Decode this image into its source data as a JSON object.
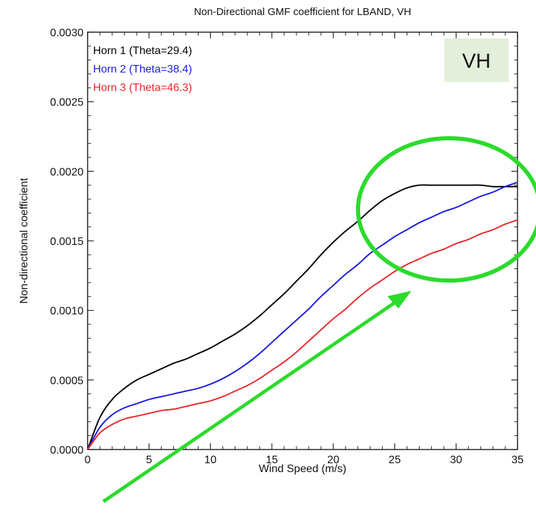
{
  "chart_data": {
    "type": "line",
    "title": "Non-Directional GMF coefficient for LBAND, VH",
    "xlabel": "Wind Speed (m/s)",
    "ylabel": "Non-directional coefficient",
    "xlim": [
      0,
      35
    ],
    "ylim": [
      0,
      0.003
    ],
    "xticks": [
      "0",
      "5",
      "10",
      "15",
      "20",
      "25",
      "30",
      "35"
    ],
    "yticks": [
      "0.0000",
      "0.0005",
      "0.0010",
      "0.0015",
      "0.0020",
      "0.0025",
      "0.0030"
    ],
    "x": [
      0,
      1,
      2,
      3,
      4,
      5,
      6,
      7,
      8,
      9,
      10,
      11,
      12,
      13,
      14,
      15,
      16,
      17,
      18,
      19,
      20,
      21,
      22,
      23,
      24,
      25,
      26,
      27,
      28,
      29,
      30,
      31,
      32,
      33,
      34,
      35
    ],
    "series": [
      {
        "name": "Horn 1 (Theta=29.4)",
        "color": "#000000",
        "values": [
          0.0,
          0.00023,
          0.00036,
          0.00044,
          0.0005,
          0.00054,
          0.00058,
          0.00062,
          0.00065,
          0.00069,
          0.00073,
          0.00078,
          0.00083,
          0.00089,
          0.00096,
          0.00104,
          0.00112,
          0.00121,
          0.0013,
          0.0014,
          0.00149,
          0.00157,
          0.00164,
          0.00172,
          0.00179,
          0.00184,
          0.00188,
          0.0019,
          0.0019,
          0.0019,
          0.0019,
          0.0019,
          0.0019,
          0.00189,
          0.00189,
          0.00189
        ]
      },
      {
        "name": "Horn 2 (Theta=38.4)",
        "color": "#1a1adf",
        "values": [
          0.0,
          0.00016,
          0.00025,
          0.0003,
          0.00033,
          0.00036,
          0.00038,
          0.0004,
          0.00042,
          0.00044,
          0.00047,
          0.00051,
          0.00056,
          0.00062,
          0.00069,
          0.00077,
          0.00085,
          0.00093,
          0.00101,
          0.0011,
          0.00118,
          0.00126,
          0.00133,
          0.00141,
          0.00147,
          0.00153,
          0.00158,
          0.00163,
          0.00167,
          0.00171,
          0.00174,
          0.00178,
          0.00182,
          0.00185,
          0.00189,
          0.00192
        ]
      },
      {
        "name": "Horn 3 (Theta=46.3)",
        "color": "#e8262a",
        "values": [
          0.0,
          0.00012,
          0.00018,
          0.00022,
          0.00024,
          0.00026,
          0.00028,
          0.00029,
          0.00031,
          0.00033,
          0.00035,
          0.00038,
          0.00042,
          0.00046,
          0.00051,
          0.00057,
          0.00063,
          0.0007,
          0.00078,
          0.00086,
          0.00094,
          0.00101,
          0.00109,
          0.00116,
          0.00122,
          0.00128,
          0.00133,
          0.00137,
          0.00141,
          0.00144,
          0.00148,
          0.00151,
          0.00155,
          0.00158,
          0.00162,
          0.00165
        ]
      }
    ],
    "grid": false,
    "legend": "top-left",
    "badge": "VH",
    "badge_color": "#e3eedb",
    "annotation_color": "#2bdb2b"
  }
}
